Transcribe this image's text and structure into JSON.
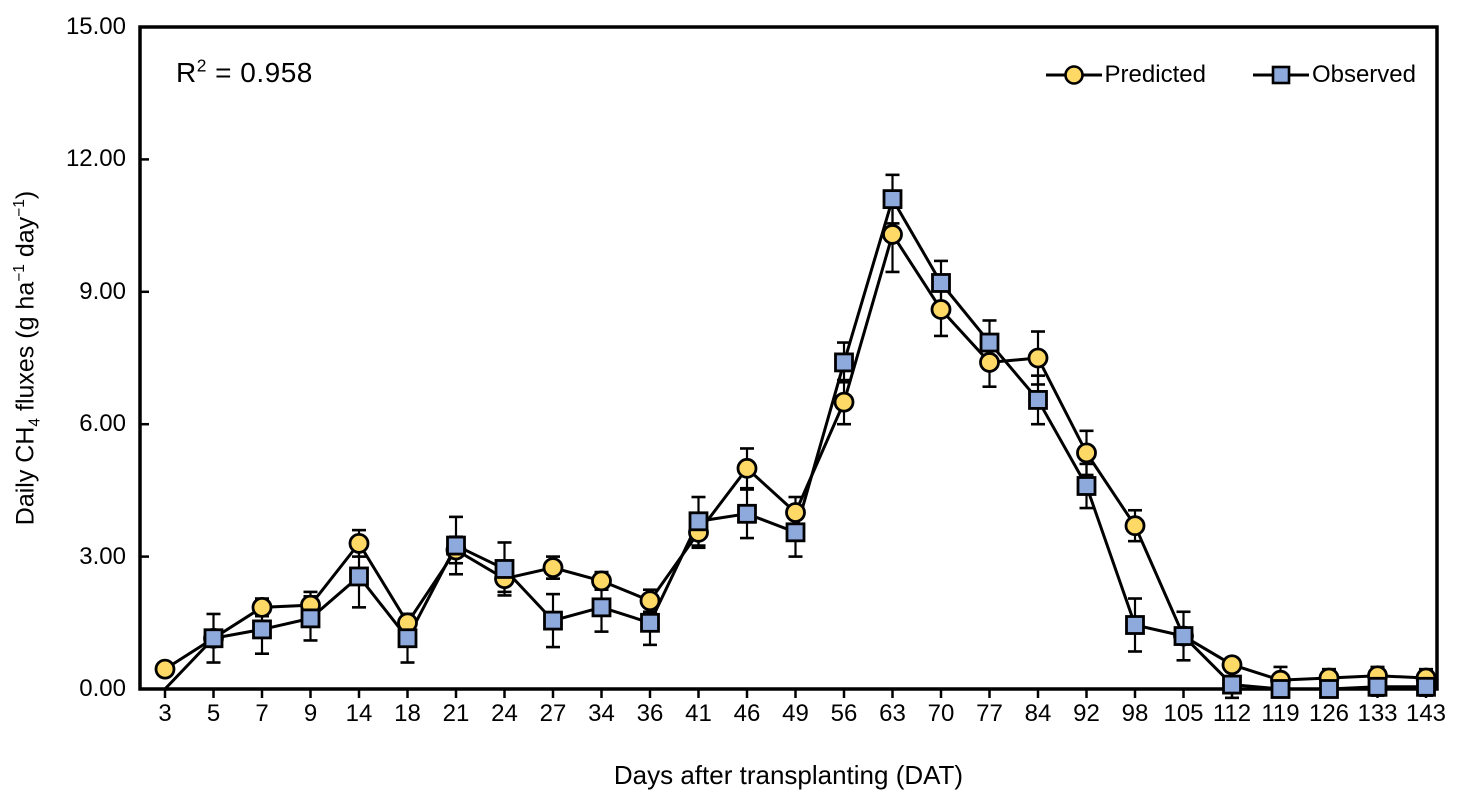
{
  "annotation": {
    "base": "R",
    "sup": "2",
    "rest": " = 0.958"
  },
  "legend": {
    "items": [
      {
        "label": "Predicted",
        "marker": "circle"
      },
      {
        "label": "Observed",
        "marker": "square"
      }
    ]
  },
  "chart_data": {
    "type": "line",
    "title": "",
    "xlabel": "Days after transplanting (DAT)",
    "ylabel": "Daily CH₄ fluxes (g ha⁻¹ day⁻¹)",
    "ylabel_parts": {
      "p1": "Daily CH",
      "sub1": "4",
      "p2": " fluxes (g ha",
      "sup1": "−1",
      "p3": " day",
      "sup2": "−1",
      "p4": ")"
    },
    "annotation_text": "R² = 0.958",
    "grid": false,
    "legend_position": "top-right-inside",
    "ylim": [
      0,
      15
    ],
    "ytick_values": [
      0,
      3,
      6,
      9,
      12,
      15
    ],
    "ytick_labels": [
      "0.00",
      "3.00",
      "6.00",
      "9.00",
      "12.00",
      "15.00"
    ],
    "categories": [
      "3",
      "5",
      "7",
      "9",
      "14",
      "18",
      "21",
      "24",
      "27",
      "34",
      "36",
      "41",
      "46",
      "49",
      "56",
      "63",
      "70",
      "77",
      "84",
      "92",
      "98",
      "105",
      "112",
      "119",
      "126",
      "133",
      "143"
    ],
    "colors": {
      "line": "#000000",
      "frame": "#000000",
      "predicted_fill": "#FFD966",
      "observed_fill": "#8EA9DB"
    },
    "series": [
      {
        "name": "Predicted",
        "marker": "circle",
        "fill": "#FFD966",
        "stroke": "#000000",
        "values": [
          0.45,
          1.15,
          1.85,
          1.9,
          3.3,
          1.5,
          3.15,
          2.5,
          2.75,
          2.45,
          2.0,
          3.55,
          5.0,
          4.0,
          6.5,
          10.3,
          8.6,
          7.4,
          7.5,
          5.35,
          3.7,
          1.2,
          0.55,
          0.2,
          0.25,
          0.3,
          0.25
        ],
        "errors": [
          0,
          0,
          0.2,
          0.3,
          0.3,
          0.2,
          0.3,
          0.3,
          0.25,
          0.2,
          0.25,
          0.35,
          0.45,
          0.35,
          0.5,
          0.85,
          0.6,
          0.55,
          0.6,
          0.5,
          0.35,
          0,
          0.15,
          0.3,
          0.2,
          0.2,
          0.2
        ],
        "hidden_marker_indices": []
      },
      {
        "name": "Observed",
        "marker": "square",
        "fill": "#8EA9DB",
        "stroke": "#000000",
        "values": [
          0.0,
          1.15,
          1.35,
          1.6,
          2.55,
          1.15,
          3.25,
          2.72,
          1.55,
          1.85,
          1.5,
          3.8,
          3.97,
          3.55,
          7.4,
          11.1,
          9.2,
          7.85,
          6.55,
          4.6,
          1.45,
          1.2,
          0.1,
          0.0,
          0.0,
          0.05,
          0.05
        ],
        "errors": [
          0,
          0.55,
          0.55,
          0.5,
          0.7,
          0.55,
          0.65,
          0.6,
          0.6,
          0.55,
          0.5,
          0.55,
          0.55,
          0.55,
          0.45,
          0.55,
          0.5,
          0.5,
          0.55,
          0.5,
          0.6,
          0.55,
          0.3,
          0.15,
          0.15,
          0.2,
          0.2
        ],
        "hidden_marker_indices": [
          0
        ]
      }
    ]
  }
}
